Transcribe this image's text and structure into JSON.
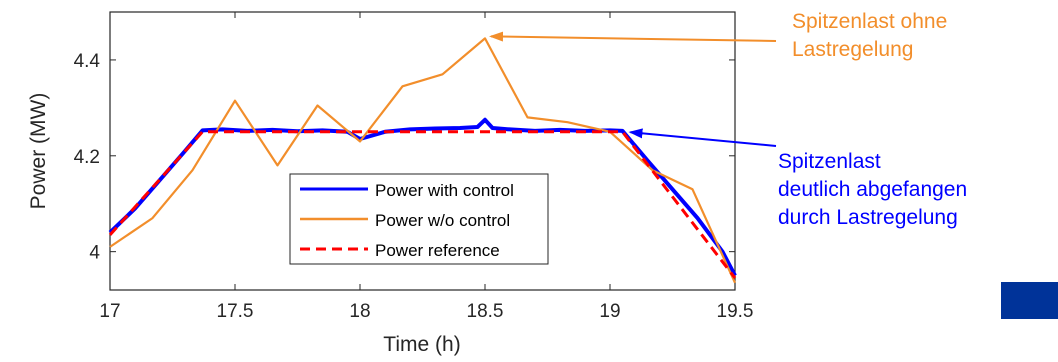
{
  "chart_data": {
    "type": "line",
    "title": "",
    "xlabel": "Time (h)",
    "ylabel": "Power (MW)",
    "xlim": [
      17,
      19.5
    ],
    "ylim": [
      3.92,
      4.5
    ],
    "xticks": [
      17,
      17.5,
      18,
      18.5,
      19,
      19.5
    ],
    "xtick_labels": [
      "17",
      "17.5",
      "18",
      "18.5",
      "19",
      "19.5"
    ],
    "yticks": [
      4.0,
      4.2,
      4.4
    ],
    "ytick_labels": [
      "4",
      "4.2",
      "4.4"
    ],
    "grid": false,
    "legend_position": "lower-center",
    "series": [
      {
        "name": "Power with control",
        "color": "#0000ff",
        "style": "solid",
        "x": [
          17,
          17.1,
          17.2,
          17.3,
          17.37,
          17.45,
          17.55,
          17.65,
          17.75,
          17.85,
          17.95,
          18.0,
          18.1,
          18.2,
          18.3,
          18.4,
          18.47,
          18.5,
          18.53,
          18.6,
          18.7,
          18.8,
          18.9,
          19.0,
          19.05,
          19.15,
          19.25,
          19.35,
          19.45,
          19.5
        ],
        "y": [
          4.04,
          4.09,
          4.15,
          4.21,
          4.253,
          4.255,
          4.252,
          4.254,
          4.251,
          4.253,
          4.25,
          4.235,
          4.25,
          4.255,
          4.257,
          4.258,
          4.26,
          4.275,
          4.258,
          4.255,
          4.252,
          4.254,
          4.252,
          4.253,
          4.252,
          4.19,
          4.13,
          4.07,
          4.0,
          3.95
        ]
      },
      {
        "name": "Power w/o control",
        "color": "#f28e2b",
        "style": "solid",
        "x": [
          17,
          17.17,
          17.33,
          17.5,
          17.67,
          17.83,
          18.0,
          18.17,
          18.33,
          18.5,
          18.67,
          18.83,
          19.0,
          19.17,
          19.33,
          19.5
        ],
        "y": [
          4.01,
          4.07,
          4.17,
          4.315,
          4.18,
          4.305,
          4.23,
          4.345,
          4.37,
          4.445,
          4.28,
          4.27,
          4.25,
          4.17,
          4.13,
          3.935
        ]
      },
      {
        "name": "Power reference",
        "color": "#ff0000",
        "style": "dashed",
        "x": [
          17,
          17.37,
          19.05,
          19.5
        ],
        "y": [
          4.035,
          4.25,
          4.25,
          3.945
        ]
      }
    ]
  },
  "annotations": {
    "orange": {
      "line1": "Spitzenlast ohne",
      "line2": "Lastregelung",
      "color": "#f28e2b",
      "arrow_target": {
        "x": 18.5,
        "y": 4.445
      }
    },
    "blue": {
      "line1": "Spitzenlast",
      "line2": "deutlich abgefangen",
      "line3": "durch Lastregelung",
      "color": "#0000ff",
      "arrow_target": {
        "x": 19.05,
        "y": 4.245
      }
    }
  },
  "decor": {
    "block_color": "#003399"
  }
}
